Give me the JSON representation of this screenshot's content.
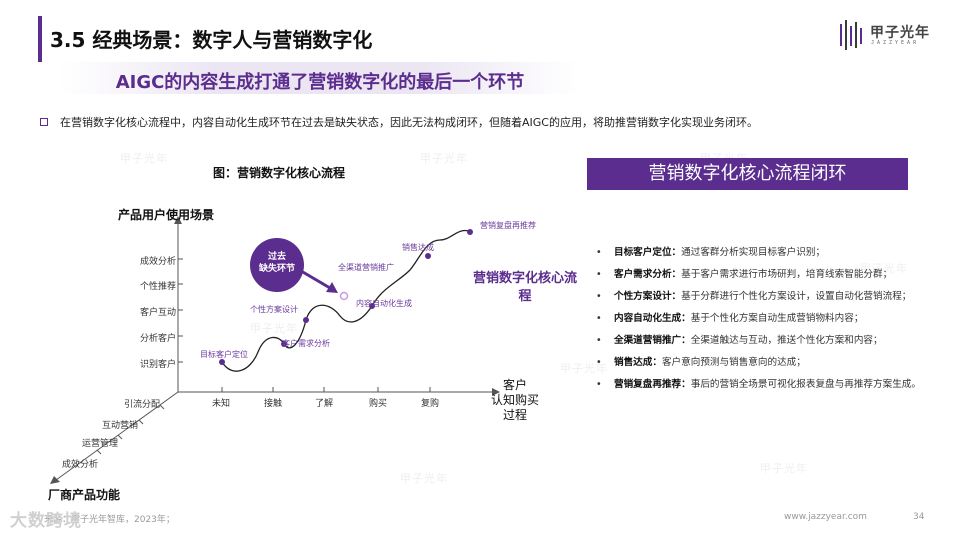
{
  "header": {
    "title": "3.5 经典场景：数字人与营销数字化",
    "subtitle": "AIGC的内容生成打通了营销数字化的最后一个环节",
    "logo_text": "甲子光年",
    "logo_sub": "JAZZYEAR"
  },
  "intro": "在营销数字化核心流程中，内容自动化生成环节在过去是缺失状态，因此无法构成闭环，但随着AIGC的应用，将助推营销数字化实现业务闭环。",
  "figure": {
    "title": "图：营销数字化核心流程",
    "y_axis_title": "产品用户使用场景",
    "y_ticks": [
      "成效分析",
      "个性推荐",
      "客户互动",
      "分析客户",
      "识别客户"
    ],
    "x_axis_title": "客户\n认知购买\n过程",
    "x_ticks": [
      "未知",
      "接触",
      "了解",
      "购买",
      "复购"
    ],
    "z_axis_title": "厂商产品功能",
    "z_ticks": [
      "引流分配",
      "互动营销",
      "运营管理",
      "成效分析"
    ],
    "flow_steps": [
      "目标客户定位",
      "客户需求分析",
      "个性方案设计",
      "内容自动化生成",
      "全渠道营销推广",
      "销售达成",
      "营销复盘再推荐"
    ],
    "missing_badge": "过去\n缺失环节",
    "loop_title": "营销数字化核心流程"
  },
  "panel": {
    "header": "营销数字化核心流程闭环",
    "items": [
      {
        "name": "目标客户定位：",
        "text": "通过客群分析实现目标客户识别；"
      },
      {
        "name": "客户需求分析：",
        "text": "基于客户需求进行市场研判，培育线索智能分群；"
      },
      {
        "name": "个性方案设计：",
        "text": "基于分群进行个性化方案设计，设置自动化营销流程；"
      },
      {
        "name": "内容自动化生成：",
        "text": "基于个性化方案自动生成营销物料内容；"
      },
      {
        "name": "全渠道营销推广：",
        "text": "全渠道触达与互动，推送个性化方案和内容；"
      },
      {
        "name": "销售达成：",
        "text": "客户意向预测与销售意向的达成；"
      },
      {
        "name": "营销复盘再推荐：",
        "text": "事后的营销全场景可视化报表复盘与再推荐方案生成。"
      }
    ]
  },
  "footer": {
    "source": "来源：甲子光年智库，2023年；",
    "brand": "大数跨境",
    "url": "www.jazzyear.com",
    "page": "34"
  },
  "colors": {
    "accent": "#5b2d8e",
    "accent_light": "#ece6f3"
  }
}
